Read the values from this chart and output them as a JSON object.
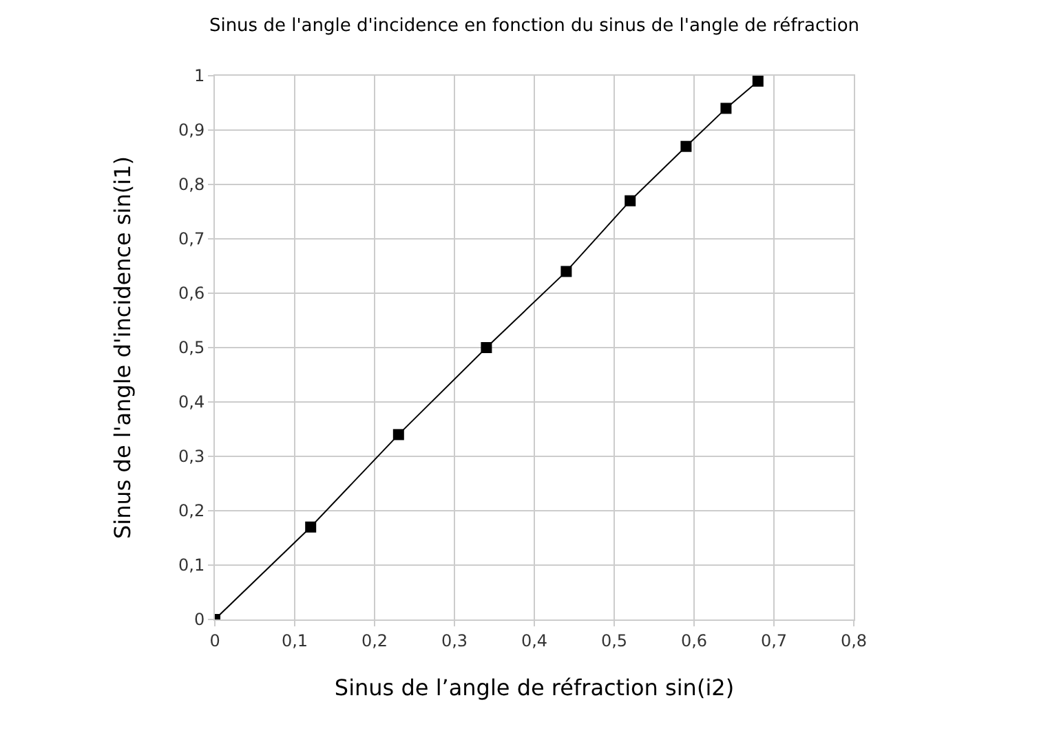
{
  "chart_data": {
    "type": "line",
    "title": "Sinus de l'angle d'incidence en fonction du sinus de l'angle de réfraction",
    "xlabel": "Sinus de l’angle de réfraction sin(i2)",
    "ylabel": "Sinus de l'angle d'incidence sin(i1)",
    "x": [
      0,
      0.12,
      0.23,
      0.34,
      0.44,
      0.52,
      0.59,
      0.64,
      0.68
    ],
    "series": [
      {
        "color": "#000000",
        "values": [
          0,
          0.17,
          0.34,
          0.5,
          0.64,
          0.77,
          0.87,
          0.94,
          0.99
        ]
      }
    ],
    "xlim": [
      0,
      0.8
    ],
    "ylim": [
      0,
      1
    ],
    "xticks": [
      0,
      {
        "value": 0.1,
        "label": "0,1"
      },
      {
        "value": 0.2,
        "label": "0,2"
      },
      {
        "value": 0.3,
        "label": "0,3"
      },
      {
        "value": 0.4,
        "label": "0,4"
      },
      {
        "value": 0.5,
        "label": "0,5"
      },
      {
        "value": 0.6,
        "label": "0,6"
      },
      {
        "value": 0.7,
        "label": "0,7"
      },
      {
        "value": 0.8,
        "label": "0,8"
      }
    ],
    "yticks": [
      0,
      {
        "value": 0.1,
        "label": "0,1"
      },
      {
        "value": 0.2,
        "label": "0,2"
      },
      {
        "value": 0.3,
        "label": "0,3"
      },
      {
        "value": 0.4,
        "label": "0,4"
      },
      {
        "value": 0.5,
        "label": "0,5"
      },
      {
        "value": 0.6,
        "label": "0,6"
      },
      {
        "value": 0.7,
        "label": "0,7"
      },
      {
        "value": 0.8,
        "label": "0,8"
      },
      {
        "value": 0.9,
        "label": "0,9"
      },
      1
    ],
    "grid": true,
    "marker": "square",
    "line_style": "solid"
  }
}
